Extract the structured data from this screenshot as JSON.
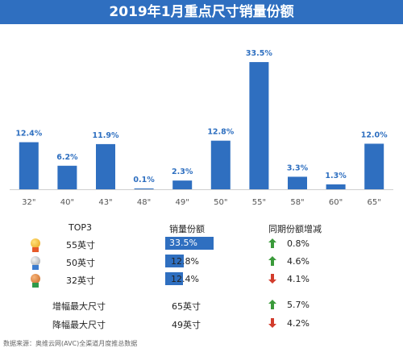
{
  "title": "2019年1月重点尺寸销量份额",
  "chart_data": {
    "type": "bar",
    "title": "2019年1月重点尺寸销量份额",
    "categories": [
      "32\"",
      "40\"",
      "43\"",
      "48\"",
      "49\"",
      "50\"",
      "55\"",
      "58\"",
      "60\"",
      "65\""
    ],
    "values": [
      12.4,
      6.2,
      11.9,
      0.1,
      2.3,
      12.8,
      33.5,
      3.3,
      1.3,
      12.0
    ],
    "value_labels": [
      "12.4%",
      "6.2%",
      "11.9%",
      "0.1%",
      "2.3%",
      "12.8%",
      "33.5%",
      "3.3%",
      "1.3%",
      "12.0%"
    ],
    "unit": "%",
    "ylim": [
      0,
      35
    ],
    "grid": false,
    "bar_color": "#2f6fc0"
  },
  "table": {
    "headers": {
      "rank": "TOP3",
      "share": "销量份额",
      "change": "同期份额增减"
    },
    "rows": [
      {
        "medal": "gold-medal-icon",
        "size": "55英寸",
        "share": "33.5%",
        "share_value": 33.5,
        "change": "0.8%",
        "direction": "up"
      },
      {
        "medal": "silver-medal-icon",
        "size": "50英寸",
        "share": "12.8%",
        "share_value": 12.8,
        "change": "4.6%",
        "direction": "up"
      },
      {
        "medal": "bronze-medal-icon",
        "size": "32英寸",
        "share": "12.4%",
        "share_value": 12.4,
        "change": "4.1%",
        "direction": "down"
      }
    ],
    "extremes": [
      {
        "label": "增幅最大尺寸",
        "size": "65英寸",
        "change": "5.7%",
        "direction": "up"
      },
      {
        "label": "降幅最大尺寸",
        "size": "49英寸",
        "change": "4.2%",
        "direction": "down"
      }
    ]
  },
  "colors": {
    "accent": "#2f6fc0",
    "up": "#3a9a3a",
    "down": "#d23c2c"
  },
  "footnote": "数据来源：奥维云网(AVC)全渠道月度推总数据"
}
